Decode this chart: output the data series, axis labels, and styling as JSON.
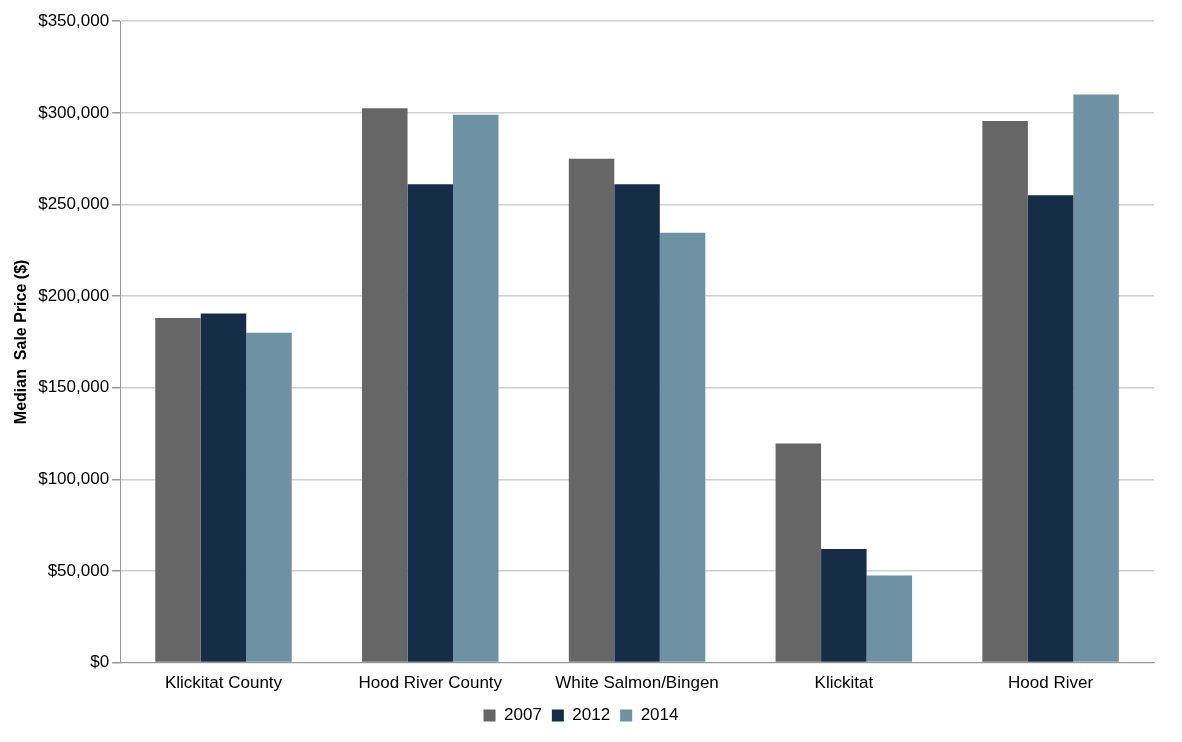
{
  "chart_data": {
    "type": "bar",
    "ylabel": "Median  Sale Price ($)",
    "categories": [
      "Klickitat County",
      "Hood River County",
      "White Salmon/Bingen",
      "Klickitat",
      "Hood River"
    ],
    "series": [
      {
        "name": "2007",
        "color": "#666666",
        "values": [
          188000,
          302500,
          275000,
          119500,
          295500
        ]
      },
      {
        "name": "2012",
        "color": "#152d46",
        "values": [
          190500,
          261000,
          261000,
          62000,
          255000
        ]
      },
      {
        "name": "2014",
        "color": "#6e92a3",
        "values": [
          180000,
          299000,
          234500,
          47500,
          310000
        ]
      }
    ],
    "ylim": [
      0,
      350000
    ],
    "yticks": [
      {
        "value": 0,
        "label": "$0"
      },
      {
        "value": 50000,
        "label": "$50,000"
      },
      {
        "value": 100000,
        "label": "$100,000"
      },
      {
        "value": 150000,
        "label": "$150,000"
      },
      {
        "value": 200000,
        "label": "$200,000"
      },
      {
        "value": 250000,
        "label": "$250,000"
      },
      {
        "value": 300000,
        "label": "$300,000"
      },
      {
        "value": 350000,
        "label": "$350,000"
      }
    ],
    "grid": "y",
    "legend": "bottom"
  }
}
